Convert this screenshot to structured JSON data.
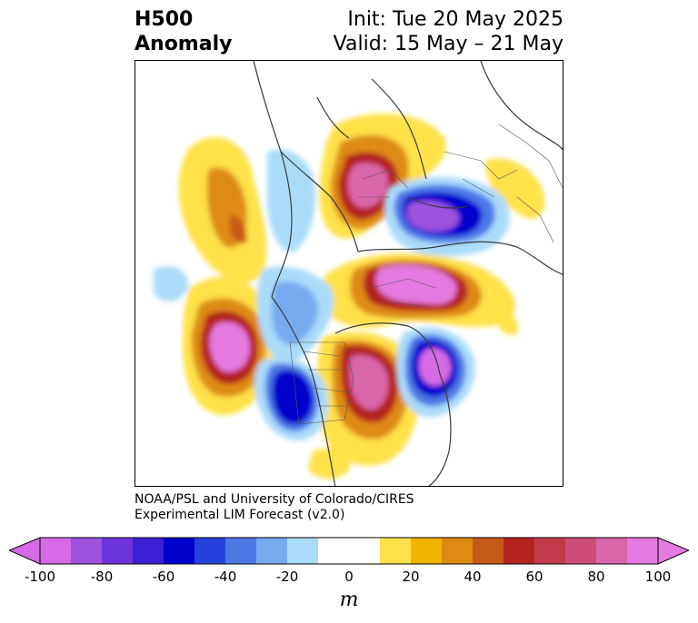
{
  "header": {
    "title_line1": "H500",
    "title_line2": "Anomaly",
    "init": "Init: Tue 20 May 2025",
    "valid": "Valid: 15 May – 21 May"
  },
  "credit": {
    "line1": "NOAA/PSL and University of Colorado/CIRES",
    "line2": "Experimental LIM Forecast (v2.0)"
  },
  "colorbar": {
    "unit": "m",
    "ticks": [
      "-100",
      "-80",
      "-60",
      "-40",
      "-20",
      "0",
      "20",
      "40",
      "60",
      "80",
      "100"
    ],
    "levels": [
      -100,
      -90,
      -80,
      -70,
      -60,
      -50,
      -40,
      -30,
      -20,
      -10,
      10,
      20,
      30,
      40,
      50,
      60,
      70,
      80,
      90,
      100
    ],
    "colors": [
      "#d66ae6",
      "#9e52de",
      "#6d34dc",
      "#3c1fd3",
      "#0000cd",
      "#2543dc",
      "#4d78e6",
      "#78aaf0",
      "#aadcfa",
      "#ffffff",
      "#ffe14a",
      "#f2b400",
      "#de8b14",
      "#c85a19",
      "#b4231e",
      "#c33a4b",
      "#cd4c78",
      "#d966a8",
      "#e67ae0"
    ],
    "under_color": "#d66ae6",
    "over_color": "#e67ae0"
  }
}
